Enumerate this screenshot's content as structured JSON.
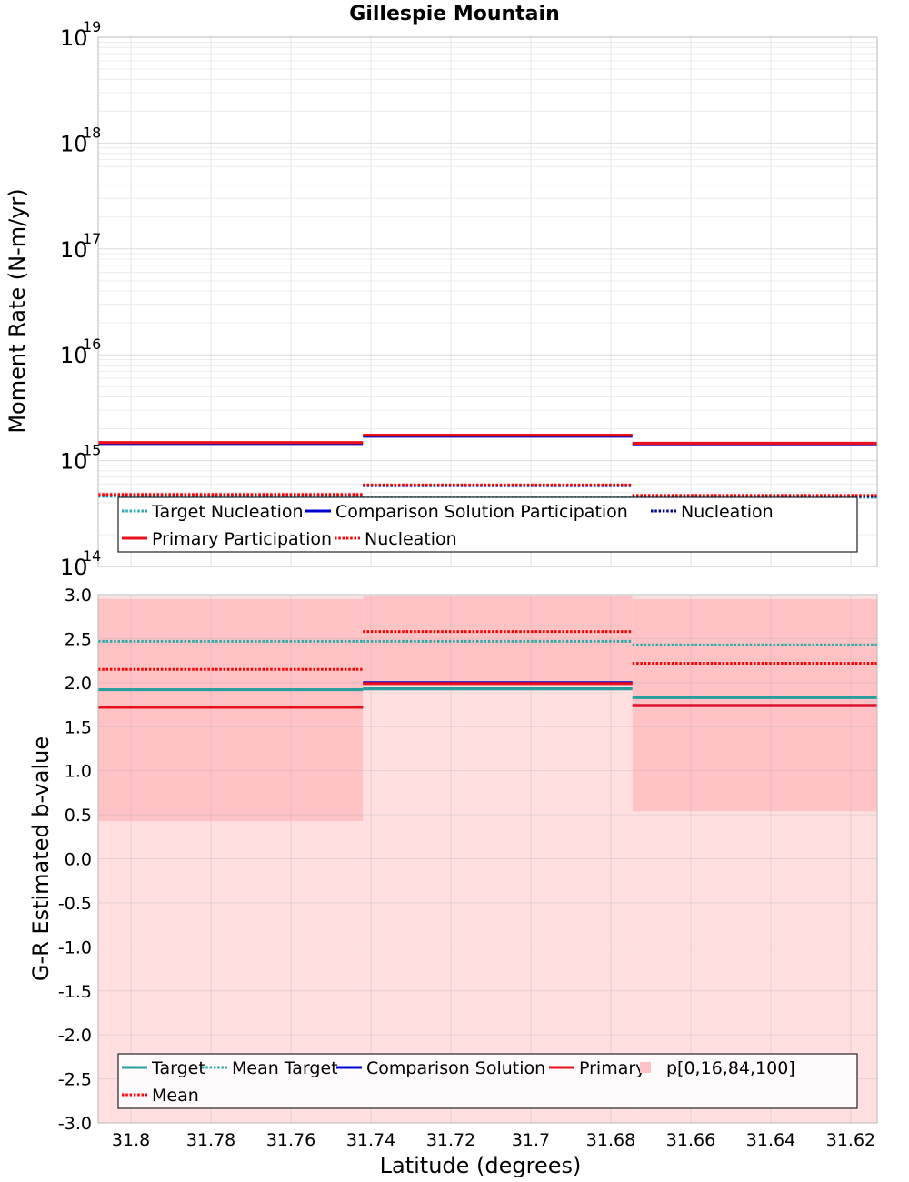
{
  "title": "Gillespie Mountain",
  "colors": {
    "target": "#2a9d9d",
    "mean_target": "#2aaaaa",
    "comparison": "#0000cc",
    "comparison_nucleation": "#00008b",
    "primary": "#e8101c",
    "mean": "#ff0000",
    "band_inner": "#ffc3c5",
    "band_outer": "#ffdfe0",
    "grid": "#e3e3e3",
    "frame": "#b8b8b8"
  },
  "chart_data": [
    {
      "type": "line",
      "name": "moment_rate",
      "ylabel": "Moment Rate (N-m/yr)",
      "yscale": "log",
      "ylim": [
        100000000000000.0,
        1e+19
      ],
      "y_tick_exponents": [
        14,
        15,
        16,
        17,
        18,
        19
      ],
      "xlim": [
        31.8082,
        31.6134
      ],
      "x_reversed": true,
      "segment_edges": [
        31.8082,
        31.742,
        31.6746,
        31.6134
      ],
      "series": [
        {
          "name": "Target Nucleation",
          "style": "dotted",
          "color": "#2aaaaa",
          "values": [
            460000000000000.0,
            450000000000000.0,
            450000000000000.0
          ]
        },
        {
          "name": "Comparison Solution Participation",
          "style": "solid",
          "color": "#0000cc",
          "values": [
            1450000000000000.0,
            1700000000000000.0,
            1440000000000000.0
          ]
        },
        {
          "name": "Nucleation",
          "style": "dotted",
          "color": "#00008b",
          "values": [
            470000000000000.0,
            580000000000000.0,
            460000000000000.0
          ]
        },
        {
          "name": "Primary Participation",
          "style": "solid",
          "color": "#e8101c",
          "values": [
            1480000000000000.0,
            1740000000000000.0,
            1460000000000000.0
          ]
        },
        {
          "name": "Nucleation",
          "style": "dotted",
          "color": "#ff0000",
          "values": [
            480000000000000.0,
            590000000000000.0,
            470000000000000.0
          ]
        }
      ],
      "legend": {
        "placement": "bottom",
        "entries": [
          {
            "label": "Target Nucleation",
            "color": "#2aaaaa",
            "style": "dotted"
          },
          {
            "label": "Comparison Solution Participation",
            "color": "#0000cc",
            "style": "solid"
          },
          {
            "label": "Nucleation",
            "color": "#00008b",
            "style": "dotted"
          },
          {
            "label": "Primary Participation",
            "color": "#e8101c",
            "style": "solid"
          },
          {
            "label": "Nucleation",
            "color": "#ff0000",
            "style": "dotted"
          }
        ]
      }
    },
    {
      "type": "line",
      "name": "b_value",
      "xlabel": "Latitude (degrees)",
      "ylabel": "G-R Estimated b-value",
      "ylim": [
        -3.0,
        3.0
      ],
      "y_ticks": [
        "-3.0",
        "-2.5",
        "-2.0",
        "-1.5",
        "-1.0",
        "-0.5",
        "0.0",
        "0.5",
        "1.0",
        "1.5",
        "2.0",
        "2.5",
        "3.0"
      ],
      "xlim": [
        31.8082,
        31.6134
      ],
      "x_reversed": true,
      "x_ticks": [
        "31.8",
        "31.78",
        "31.76",
        "31.74",
        "31.72",
        "31.7",
        "31.68",
        "31.66",
        "31.64",
        "31.62"
      ],
      "segment_edges": [
        31.8082,
        31.742,
        31.6746,
        31.6134
      ],
      "bands": {
        "name": "p[0,16,84,100]",
        "p0": [
          -3.0,
          -3.0,
          -3.0
        ],
        "p16": [
          0.43,
          1.98,
          0.54
        ],
        "p84": [
          2.95,
          2.99,
          2.95
        ],
        "p100": [
          2.99,
          2.99,
          2.99
        ]
      },
      "series": [
        {
          "name": "Target",
          "style": "solid",
          "color": "#2a9d9d",
          "values": [
            1.92,
            1.93,
            1.83
          ]
        },
        {
          "name": "Mean Target",
          "style": "dotted",
          "color": "#2aaaaa",
          "values": [
            2.47,
            2.47,
            2.43
          ]
        },
        {
          "name": "Comparison Solution",
          "style": "solid",
          "color": "#0000cc",
          "values": [
            1.72,
            2.0,
            1.74
          ]
        },
        {
          "name": "Primary",
          "style": "solid",
          "color": "#e8101c",
          "values": [
            1.72,
            1.99,
            1.74
          ]
        },
        {
          "name": "Mean",
          "style": "dotted",
          "color": "#ff0000",
          "values": [
            2.15,
            2.58,
            2.22
          ]
        }
      ],
      "legend": {
        "placement": "bottom",
        "entries": [
          {
            "label": "Target",
            "color": "#2a9d9d",
            "style": "solid"
          },
          {
            "label": "Mean Target",
            "color": "#2aaaaa",
            "style": "dotted"
          },
          {
            "label": "Comparison Solution",
            "color": "#0000cc",
            "style": "solid"
          },
          {
            "label": "Primary",
            "color": "#e8101c",
            "style": "solid"
          },
          {
            "label": "p[0,16,84,100]",
            "color": "#ffc3c5",
            "style": "patch"
          },
          {
            "label": "Mean",
            "color": "#ff0000",
            "style": "dotted"
          }
        ]
      }
    }
  ]
}
